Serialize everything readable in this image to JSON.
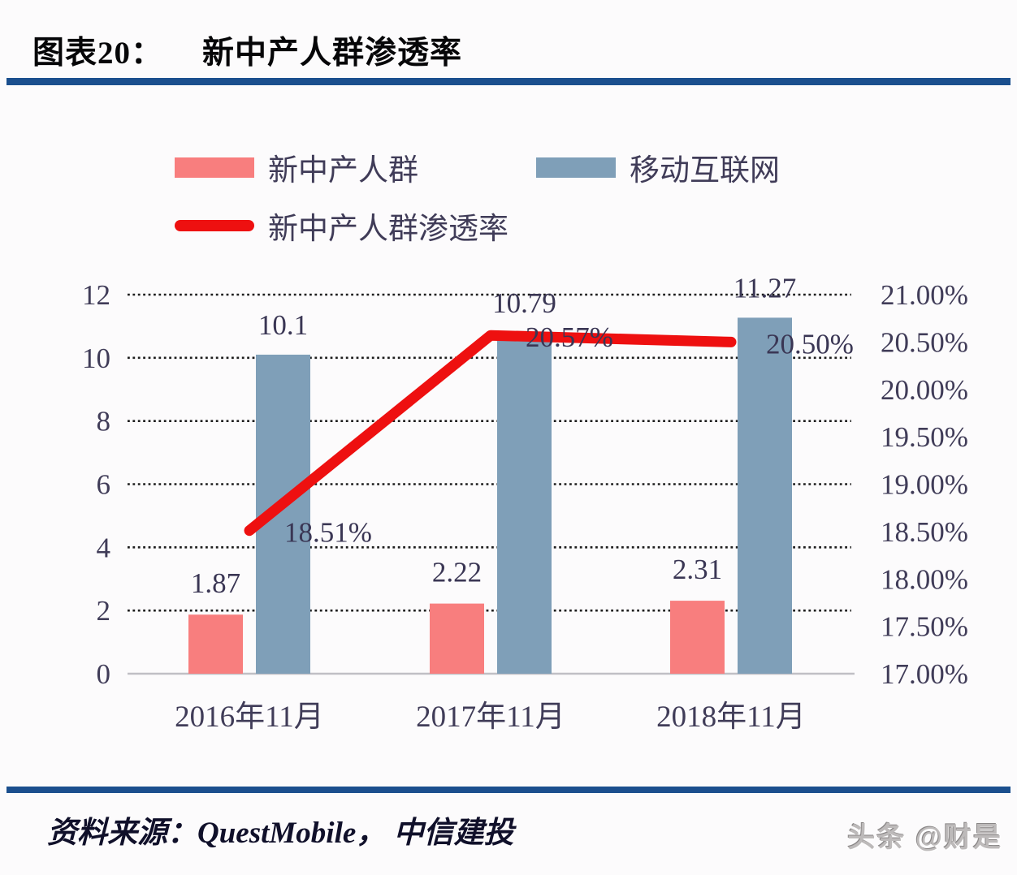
{
  "header": {
    "chart_label": "图表20：",
    "title": "新中产人群渗透率"
  },
  "legend": [
    {
      "label": "新中产人群",
      "type": "bar",
      "color": "#f87e7e"
    },
    {
      "label": "移动互联网",
      "type": "bar",
      "color": "#7f9fb8"
    },
    {
      "label": "新中产人群渗透率",
      "type": "line",
      "color": "#ee1010"
    }
  ],
  "chart_data": {
    "type": "bar+line combo",
    "categories": [
      "2016年11月",
      "2017年11月",
      "2018年11月"
    ],
    "series": [
      {
        "name": "新中产人群",
        "type": "bar",
        "axis": "left",
        "color": "#f87e7e",
        "values": [
          1.87,
          2.22,
          2.31
        ],
        "labels": [
          "1.87",
          "2.22",
          "2.31"
        ]
      },
      {
        "name": "移动互联网",
        "type": "bar",
        "axis": "left",
        "color": "#7f9fb8",
        "values": [
          10.1,
          10.79,
          11.27
        ],
        "labels": [
          "10.1",
          "10.79",
          "11.27"
        ]
      },
      {
        "name": "新中产人群渗透率",
        "type": "line",
        "axis": "right",
        "color": "#ee1010",
        "values": [
          18.51,
          20.57,
          20.5
        ],
        "labels": [
          "18.51%",
          "20.57%",
          "20.50%"
        ]
      }
    ],
    "left_axis": {
      "min": 0,
      "max": 12,
      "step": 2,
      "ticks": [
        "12",
        "10",
        "8",
        "6",
        "4",
        "2",
        "0"
      ]
    },
    "right_axis": {
      "min": 17,
      "max": 21,
      "step": 0.5,
      "ticks": [
        "21.00%",
        "20.50%",
        "20.00%",
        "19.50%",
        "19.00%",
        "18.50%",
        "18.00%",
        "17.50%",
        "17.00%"
      ]
    },
    "grid": "horizontal dotted black, solid gray baseline at 0",
    "legend_position": "top"
  },
  "colors": {
    "accent_rule": "#1b4f8e",
    "bar_pink": "#f87e7e",
    "bar_blue": "#7f9fb8",
    "line_red": "#ee1010",
    "axis_text": "#403c58",
    "background": "#fcfbfc"
  },
  "footer": {
    "source": "资料来源：QuestMobile， 中信建投",
    "watermark": "头条 @财是"
  }
}
